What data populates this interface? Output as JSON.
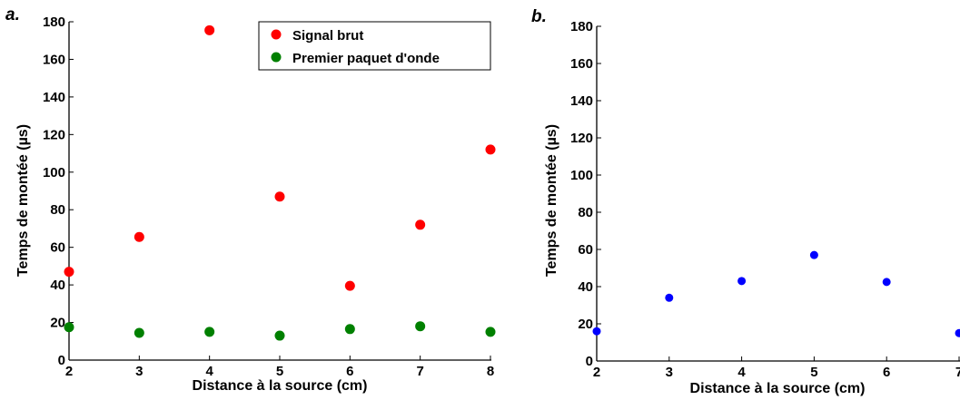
{
  "chart_data": [
    {
      "type": "scatter",
      "panel_label": "a.",
      "xlabel": "Distance à la source (cm)",
      "ylabel": "Temps de montée (µs)",
      "xlim": [
        2,
        8
      ],
      "ylim": [
        0,
        180
      ],
      "xticks": [
        2,
        3,
        4,
        5,
        6,
        7,
        8
      ],
      "yticks": [
        0,
        20,
        40,
        60,
        80,
        100,
        120,
        140,
        160,
        180
      ],
      "grid": false,
      "legend_position": "top-right",
      "series": [
        {
          "name": "Signal brut",
          "color": "#ff0000",
          "x": [
            2,
            3,
            4,
            5,
            6,
            7,
            8
          ],
          "y": [
            47,
            65.5,
            175.5,
            87,
            39.5,
            72,
            112
          ]
        },
        {
          "name": "Premier paquet d'onde",
          "color": "#008000",
          "x": [
            2,
            3,
            4,
            5,
            6,
            7,
            8
          ],
          "y": [
            17.5,
            14.5,
            15,
            13,
            16.5,
            18,
            15
          ]
        }
      ]
    },
    {
      "type": "scatter",
      "panel_label": "b.",
      "xlabel": "Distance à la source (cm)",
      "ylabel": "Temps de montée (µs)",
      "xlim": [
        2,
        7
      ],
      "ylim": [
        0,
        180
      ],
      "xticks": [
        2,
        3,
        4,
        5,
        6,
        7
      ],
      "yticks": [
        0,
        20,
        40,
        60,
        80,
        100,
        120,
        140,
        160,
        180
      ],
      "grid": false,
      "series": [
        {
          "color": "#0000ff",
          "x": [
            2,
            3,
            4,
            5,
            6,
            7
          ],
          "y": [
            16,
            34,
            43,
            57,
            42.5,
            15
          ]
        }
      ]
    }
  ]
}
